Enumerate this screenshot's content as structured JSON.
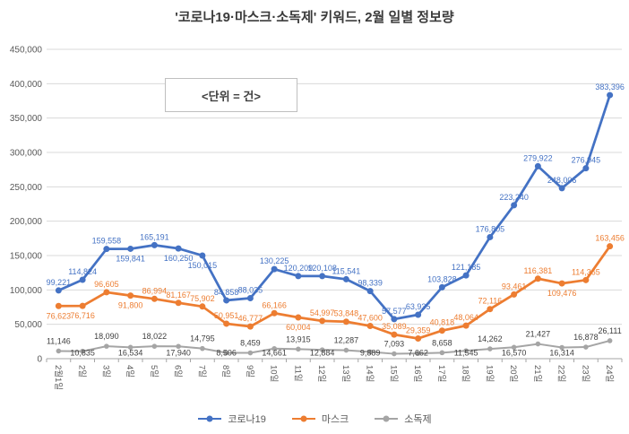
{
  "title": "'코로나19·마스크·소독제' 키워드, 2월 일별 정보량",
  "annotation": "<단위 = 건>",
  "chart_data": {
    "type": "line",
    "title": "'코로나19·마스크·소독제' 키워드, 2월 일별 정보량",
    "unit_note": "<단위 = 건>",
    "categories": [
      "2월1일",
      "2일",
      "3일",
      "4일",
      "5일",
      "6일",
      "7일",
      "8일",
      "9일",
      "10일",
      "11일",
      "12일",
      "13일",
      "14일",
      "15일",
      "16일",
      "17일",
      "18일",
      "19일",
      "20일",
      "21일",
      "22일",
      "23일",
      "24일"
    ],
    "series": [
      {
        "name": "코로나19",
        "color": "#4472C4",
        "label_color": "#4472C4",
        "values": [
          99221,
          114824,
          159558,
          159841,
          165191,
          160250,
          150015,
          84858,
          88035,
          130225,
          120209,
          120108,
          115541,
          98339,
          57577,
          63935,
          103828,
          121185,
          176805,
          223240,
          279922,
          248006,
          276945,
          383396
        ],
        "label_side": [
          "a",
          "a",
          "a",
          "b",
          "a",
          "b",
          "b",
          "a",
          "a",
          "a",
          "a",
          "a",
          "a",
          "a",
          "a",
          "a",
          "a",
          "a",
          "a",
          "a",
          "a",
          "a",
          "a",
          "a"
        ]
      },
      {
        "name": "마스크",
        "color": "#ED7D31",
        "label_color": "#ED7D31",
        "values": [
          76623,
          76716,
          96605,
          91800,
          86994,
          81167,
          75902,
          50951,
          46777,
          66166,
          60004,
          54997,
          53848,
          47600,
          35089,
          29359,
          40818,
          48064,
          72116,
          93461,
          116381,
          109476,
          114365,
          163456
        ],
        "label_side": [
          "b",
          "b",
          "a",
          "b",
          "a",
          "a",
          "a",
          "a",
          "a",
          "a",
          "b",
          "a",
          "a",
          "a",
          "a",
          "a",
          "a",
          "a",
          "a",
          "a",
          "a",
          "b",
          "a",
          "a"
        ]
      },
      {
        "name": "소독제",
        "color": "#A5A5A5",
        "label_color": "#404040",
        "values": [
          11146,
          10835,
          18090,
          16534,
          18022,
          17940,
          14795,
          8506,
          8459,
          14661,
          13915,
          12884,
          12287,
          9889,
          7093,
          7662,
          8658,
          11545,
          14262,
          16570,
          21427,
          16314,
          16878,
          26111
        ],
        "label_side": [
          "a",
          "b",
          "a",
          "b",
          "a",
          "b",
          "a",
          "b",
          "a",
          "b",
          "a",
          "b",
          "a",
          "b",
          "a",
          "b",
          "a",
          "b",
          "a",
          "b",
          "a",
          "b",
          "a",
          "a"
        ]
      }
    ],
    "ylim": [
      0,
      450000
    ],
    "ytick_step": 50000,
    "grid": true,
    "legend_position": "bottom",
    "legend": [
      "코로나19",
      "마스크",
      "소독제"
    ]
  }
}
